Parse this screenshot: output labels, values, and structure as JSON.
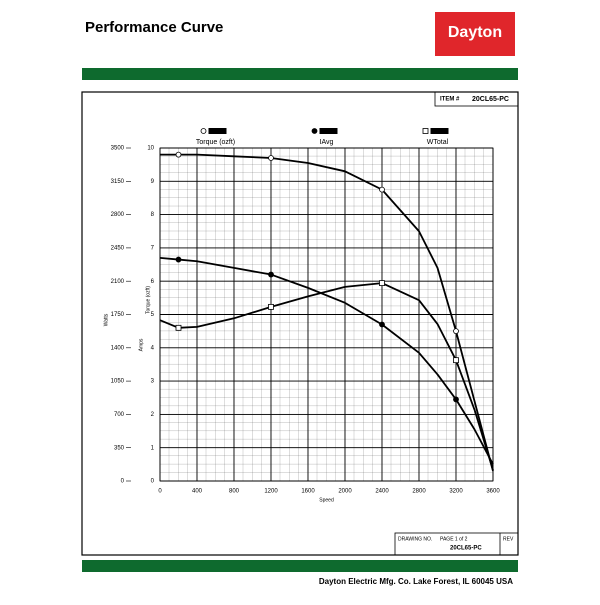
{
  "header": {
    "title": "Performance Curve",
    "logo": "Dayton"
  },
  "item": {
    "label": "ITEM #",
    "number": "20CL65-PC"
  },
  "chart_data": {
    "type": "line",
    "x_label": "Speed",
    "y_label": "Watts",
    "y2_label": "Amps",
    "y3_label": "Torque (ozft)",
    "x": [
      0,
      200,
      400,
      800,
      1200,
      1600,
      2000,
      2400,
      2800,
      3000,
      3200,
      3400,
      3600
    ],
    "xlim": [
      0,
      3600
    ],
    "xticks": [
      0,
      400,
      800,
      1200,
      1600,
      2000,
      2400,
      2800,
      3200,
      3600
    ],
    "ylim": [
      0,
      3500
    ],
    "yticks": [
      0,
      350,
      700,
      1050,
      1400,
      1750,
      2100,
      2450,
      2800,
      3150,
      3500
    ],
    "y2lim": [
      0,
      10
    ],
    "y2ticks": [
      0,
      1,
      2,
      3,
      4,
      5,
      6,
      7,
      8,
      9,
      10
    ],
    "grid": true,
    "series": [
      {
        "name": "Torque (ozft)",
        "color": "#000000",
        "marker": "circle-open",
        "axis": "y2",
        "values": [
          9.8,
          9.8,
          9.8,
          9.75,
          9.7,
          9.55,
          9.3,
          8.75,
          7.5,
          6.4,
          4.5,
          2.4,
          0.3
        ]
      },
      {
        "name": "IAvg",
        "color": "#000000",
        "marker": "circle",
        "axis": "y2",
        "values": [
          6.7,
          6.65,
          6.6,
          6.4,
          6.2,
          5.8,
          5.35,
          4.7,
          3.85,
          3.2,
          2.45,
          1.55,
          0.5
        ]
      },
      {
        "name": "WTotal",
        "color": "#000000",
        "marker": "square-open",
        "values": [
          1690,
          1610,
          1620,
          1710,
          1830,
          1940,
          2040,
          2080,
          1900,
          1650,
          1270,
          750,
          115
        ]
      }
    ]
  },
  "title_block": {
    "drawing_label": "DRAWING NO.",
    "page": "PAGE  1  of  2",
    "rev": "REV",
    "drawing_no": "20CL65-PC"
  },
  "footer": "Dayton Electric Mfg. Co.  Lake Forest, IL  60045  USA"
}
